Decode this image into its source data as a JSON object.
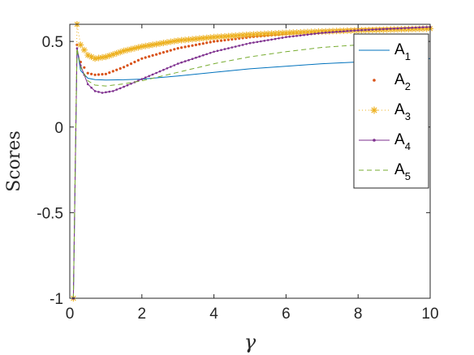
{
  "chart_data": {
    "type": "line",
    "xlabel": "γ",
    "ylabel": "Scores",
    "xlim": [
      0,
      10
    ],
    "ylim": [
      -1,
      0.6
    ],
    "xticks": [
      0,
      2,
      4,
      6,
      8,
      10
    ],
    "xtick_labels": [
      "0",
      "2",
      "4",
      "6",
      "8",
      "10"
    ],
    "yticks": [
      -1,
      -0.5,
      0,
      0.5
    ],
    "ytick_labels": [
      "-1",
      "-0.5",
      "0",
      "0.5"
    ],
    "grid": false,
    "legend_position": "top-right",
    "series": [
      {
        "name": "A1",
        "label_main": "A",
        "label_sub": "1",
        "style": "line",
        "color": "#0072BD",
        "x": [
          0.1,
          0.2,
          0.3,
          0.5,
          0.7,
          1,
          1.5,
          2,
          3,
          4,
          5,
          6,
          7,
          8,
          9,
          10
        ],
        "y": [
          -1,
          0.46,
          0.33,
          0.285,
          0.277,
          0.275,
          0.276,
          0.28,
          0.298,
          0.32,
          0.34,
          0.355,
          0.37,
          0.38,
          0.39,
          0.4
        ]
      },
      {
        "name": "A2",
        "label_main": "A",
        "label_sub": "2",
        "style": "dots",
        "color": "#D95319",
        "x": [
          0.1,
          0.2,
          0.3,
          0.5,
          0.7,
          1,
          1.5,
          2,
          3,
          4,
          5,
          6,
          7,
          8,
          9,
          10
        ],
        "y": [
          -1,
          0.48,
          0.38,
          0.315,
          0.305,
          0.31,
          0.35,
          0.4,
          0.46,
          0.5,
          0.525,
          0.545,
          0.56,
          0.57,
          0.575,
          0.58
        ]
      },
      {
        "name": "A3",
        "label_main": "A",
        "label_sub": "3",
        "style": "star-dotted",
        "color": "#EDB120",
        "x": [
          0.1,
          0.2,
          0.3,
          0.5,
          0.7,
          1,
          1.5,
          2,
          3,
          4,
          5,
          6,
          7,
          8,
          9,
          10
        ],
        "y": [
          -1,
          0.6,
          0.48,
          0.42,
          0.4,
          0.41,
          0.445,
          0.47,
          0.505,
          0.525,
          0.54,
          0.55,
          0.558,
          0.565,
          0.57,
          0.575
        ]
      },
      {
        "name": "A4",
        "label_main": "A",
        "label_sub": "4",
        "style": "line-dots",
        "color": "#7E2F8E",
        "x": [
          0.1,
          0.2,
          0.3,
          0.5,
          0.7,
          0.9,
          1.2,
          1.5,
          2,
          3,
          4,
          5,
          6,
          7,
          8,
          9,
          10
        ],
        "y": [
          -1,
          0.46,
          0.36,
          0.25,
          0.21,
          0.2,
          0.21,
          0.235,
          0.28,
          0.37,
          0.44,
          0.49,
          0.525,
          0.55,
          0.565,
          0.575,
          0.585
        ]
      },
      {
        "name": "A5",
        "label_main": "A",
        "label_sub": "5",
        "style": "dashed",
        "color": "#77AC30",
        "x": [
          0.1,
          0.2,
          0.3,
          0.5,
          0.7,
          1,
          1.5,
          2,
          3,
          4,
          5,
          6,
          7,
          8,
          9,
          10
        ],
        "y": [
          -1,
          0.46,
          0.35,
          0.27,
          0.245,
          0.24,
          0.252,
          0.27,
          0.32,
          0.37,
          0.41,
          0.44,
          0.465,
          0.48,
          0.495,
          0.51
        ]
      }
    ]
  }
}
